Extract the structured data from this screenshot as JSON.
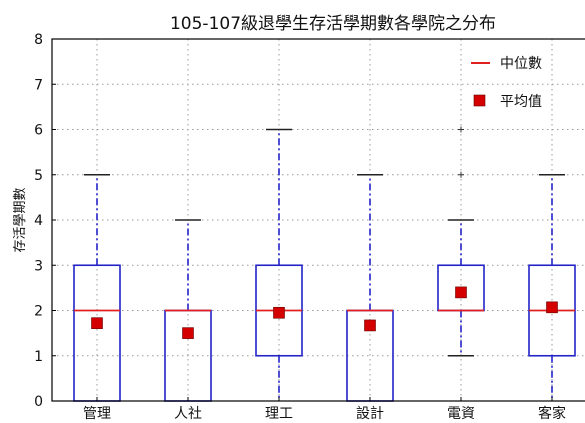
{
  "chart_data": {
    "type": "boxplot",
    "title": "105-107級退學生存活學期數各學院之分布",
    "xlabel": "",
    "ylabel": "存活學期數",
    "ylim": [
      0,
      8
    ],
    "yticks": [
      "0",
      "1",
      "2",
      "3",
      "4",
      "5",
      "6",
      "7",
      "8"
    ],
    "grid": true,
    "legend_position": "top-right",
    "legend": {
      "median_label": "中位數",
      "mean_label": "平均值"
    },
    "colors": {
      "box": "#2323c8",
      "whisker": "#2323c8",
      "cap": "#222222",
      "median": "#e02020",
      "mean": "#d40000",
      "grid": "#9a9a9a"
    },
    "categories": [
      "管理",
      "人社",
      "理工",
      "設計",
      "電資",
      "客家"
    ],
    "boxes": [
      {
        "label": "管理",
        "whislo": 0,
        "q1": 0,
        "med": 2,
        "q3": 3,
        "whishi": 5,
        "mean": 1.72,
        "fliers": []
      },
      {
        "label": "人社",
        "whislo": 0,
        "q1": 0,
        "med": 2,
        "q3": 2,
        "whishi": 4,
        "mean": 1.5,
        "fliers": []
      },
      {
        "label": "理工",
        "whislo": 0,
        "q1": 1,
        "med": 2,
        "q3": 3,
        "whishi": 6,
        "mean": 1.95,
        "fliers": []
      },
      {
        "label": "設計",
        "whislo": 0,
        "q1": 0,
        "med": 2,
        "q3": 2,
        "whishi": 5,
        "mean": 1.67,
        "fliers": []
      },
      {
        "label": "電資",
        "whislo": 1,
        "q1": 2,
        "med": 2,
        "q3": 3,
        "whishi": 4,
        "mean": 2.4,
        "fliers": [
          5,
          6
        ]
      },
      {
        "label": "客家",
        "whislo": 0,
        "q1": 1,
        "med": 2,
        "q3": 3,
        "whishi": 5,
        "mean": 2.07,
        "fliers": []
      }
    ]
  }
}
